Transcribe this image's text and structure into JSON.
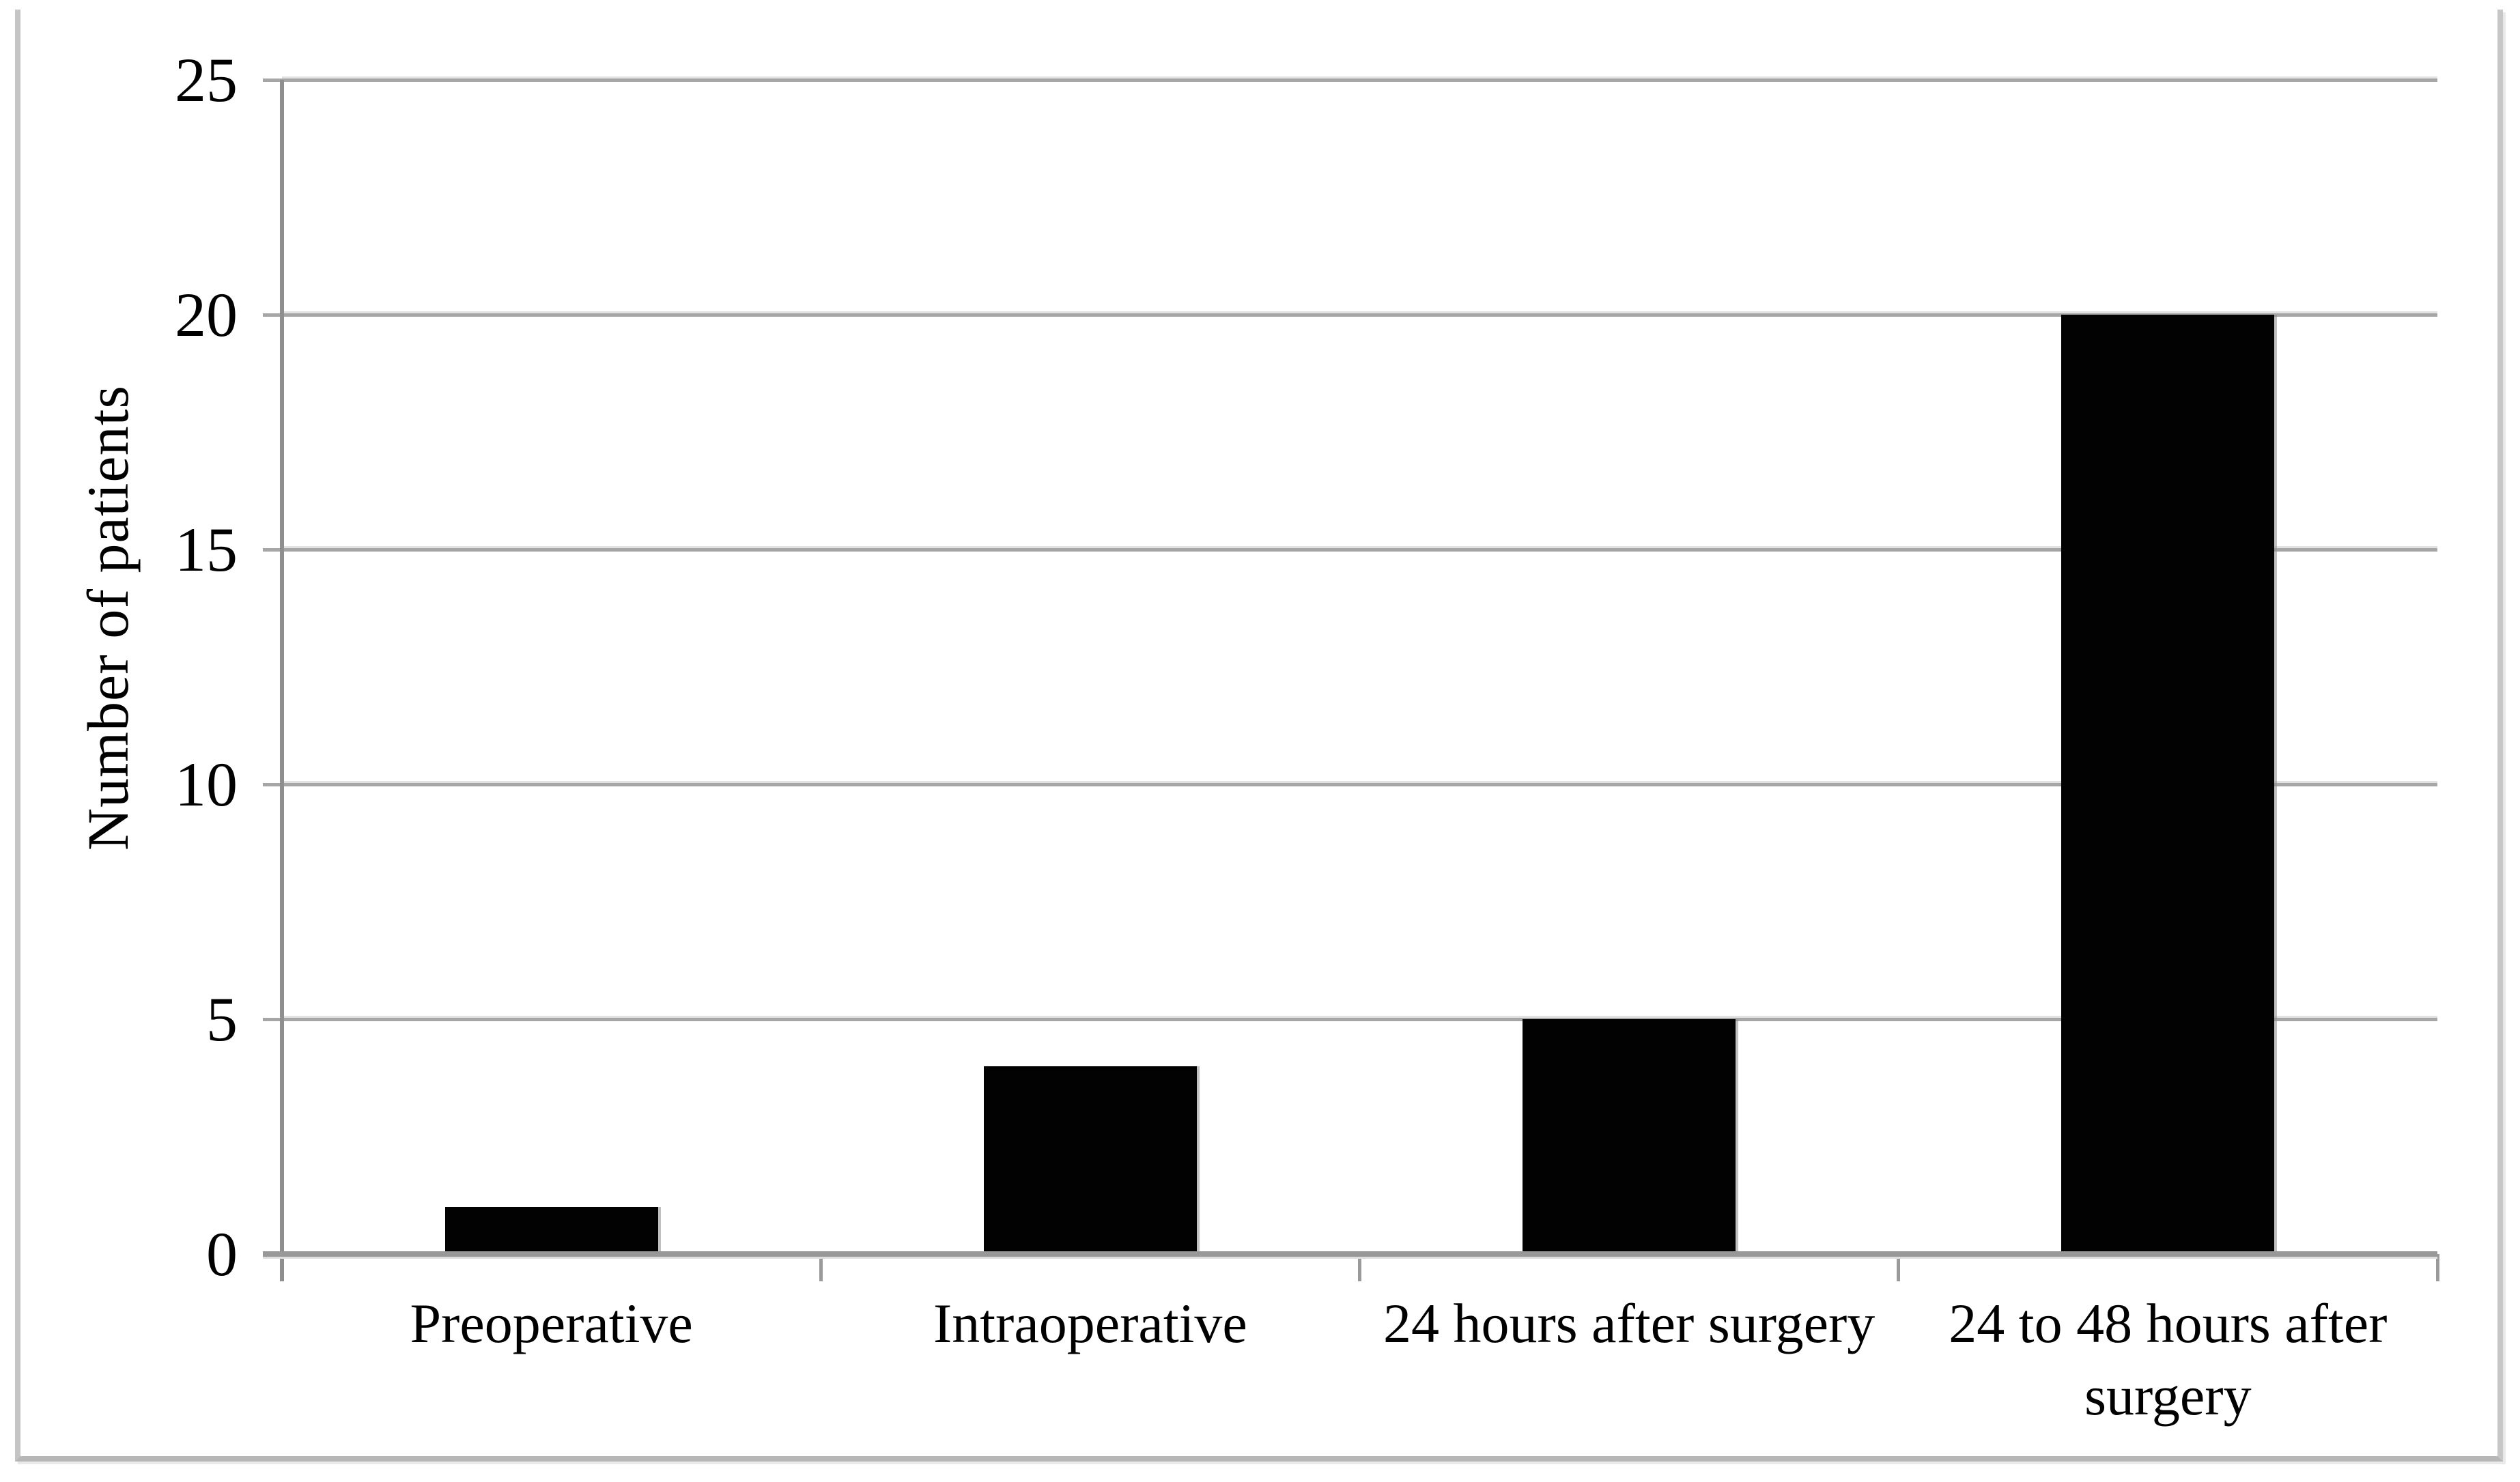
{
  "chart_data": {
    "type": "bar",
    "categories": [
      "Preoperative",
      "Intraoperative",
      "24 hours after surgery",
      "24 to 48 hours after surgery"
    ],
    "values": [
      1,
      4,
      5,
      20
    ],
    "title": "",
    "xlabel": "",
    "ylabel": "Number of patients",
    "ylim": [
      0,
      25
    ],
    "yticks": [
      0,
      5,
      10,
      15,
      20,
      25
    ],
    "grid": "horizontal",
    "legend": "none",
    "bar_color": "#020202",
    "gridline_color": "#a6a6a6",
    "axis_color": "#8f8f8f",
    "border_color": "#c5c5c5",
    "text_color": "#000000",
    "background": "#ffffff"
  }
}
